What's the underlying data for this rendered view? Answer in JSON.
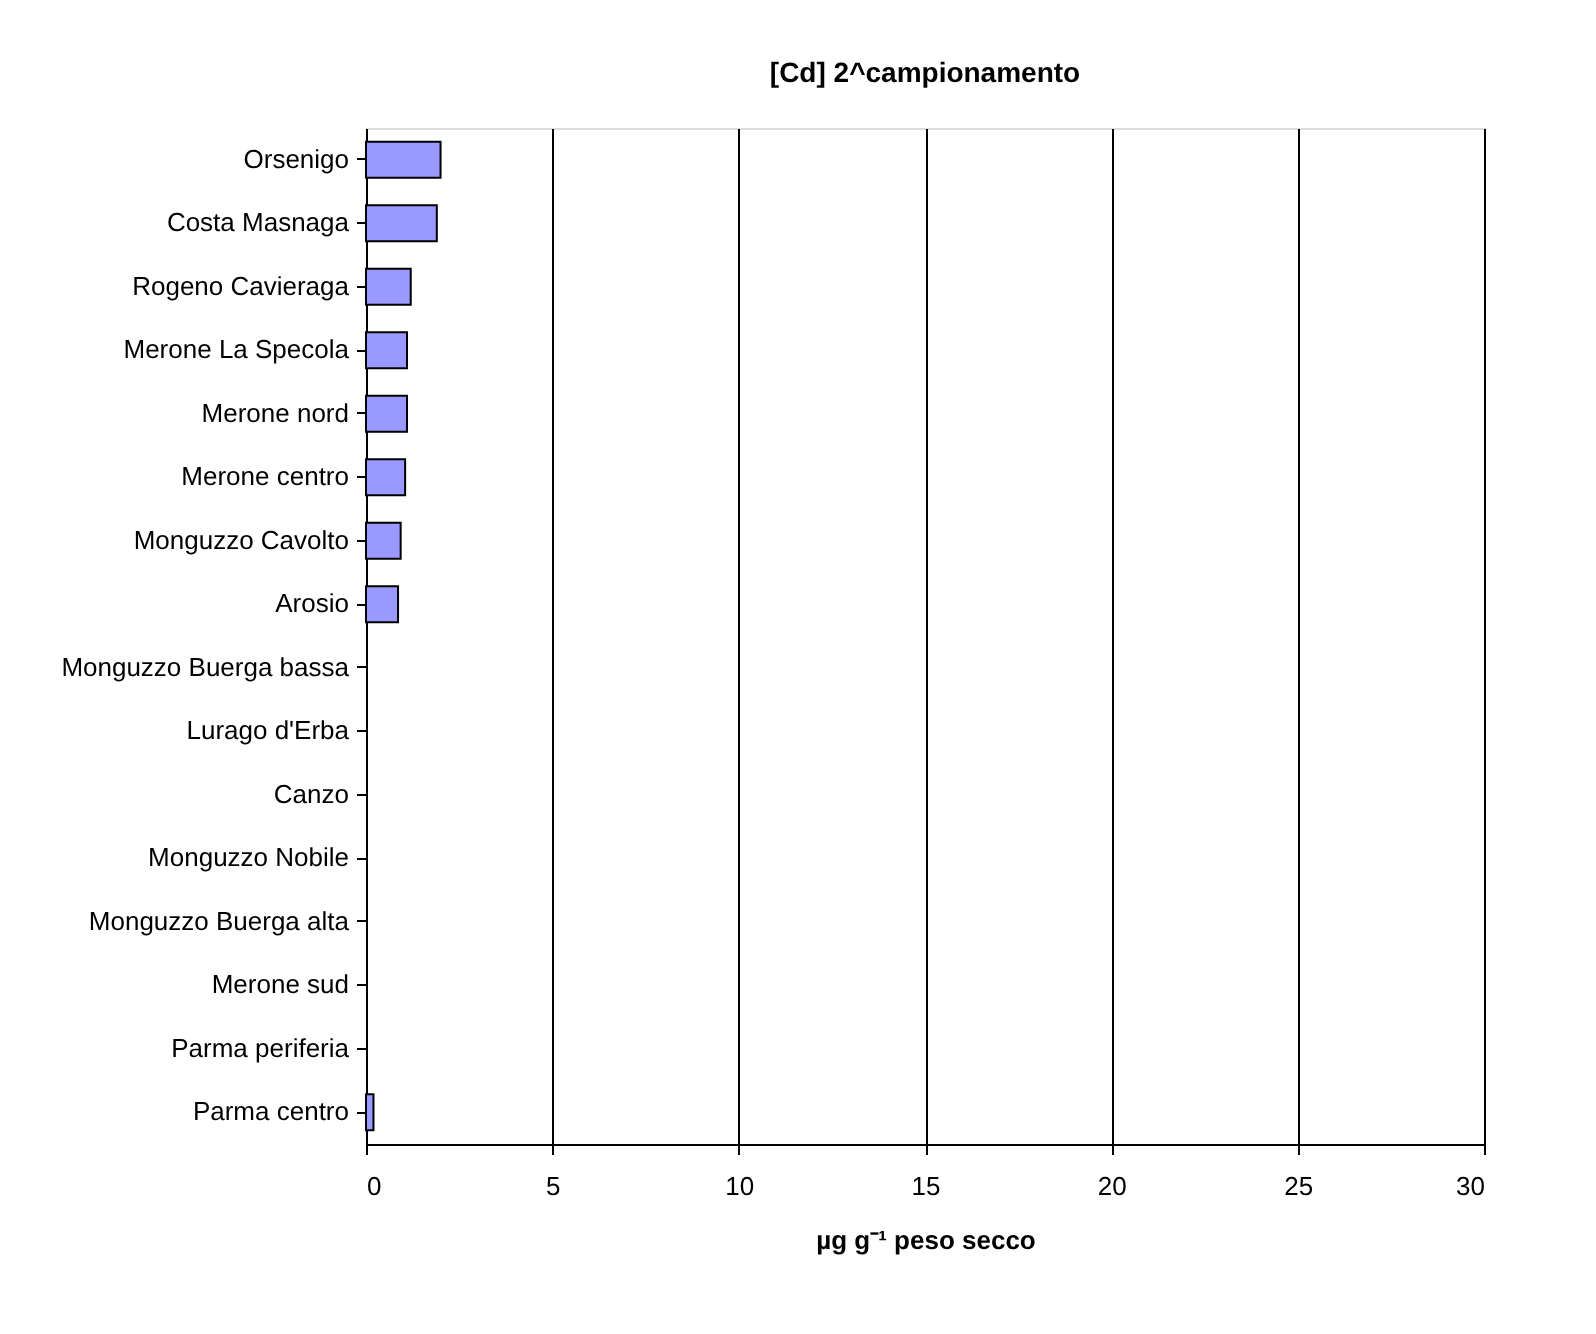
{
  "chart_data": {
    "type": "bar",
    "orientation": "horizontal",
    "title": "[Cd] 2^campionamento",
    "xlabel": "µg g⁻¹ peso secco",
    "categories": [
      "Orsenigo",
      "Costa Masnaga",
      "Rogeno Cavieraga",
      "Merone La Specola",
      "Merone nord",
      "Merone centro",
      "Monguzzo Cavolto",
      "Arosio",
      "Monguzzo Buerga bassa",
      "Lurago d'Erba",
      "Canzo",
      "Monguzzo Nobile",
      "Monguzzo Buerga alta",
      "Merone sud",
      "Parma periferia",
      "Parma centro"
    ],
    "values": [
      2.0,
      1.9,
      1.2,
      1.1,
      1.1,
      1.05,
      0.93,
      0.86,
      0,
      0,
      0,
      0,
      0,
      0,
      0,
      0.2
    ],
    "color": "#9999ff",
    "xlim": [
      0,
      30
    ],
    "xticks": [
      0,
      5,
      10,
      15,
      20,
      25,
      30
    ],
    "grid": "x"
  }
}
